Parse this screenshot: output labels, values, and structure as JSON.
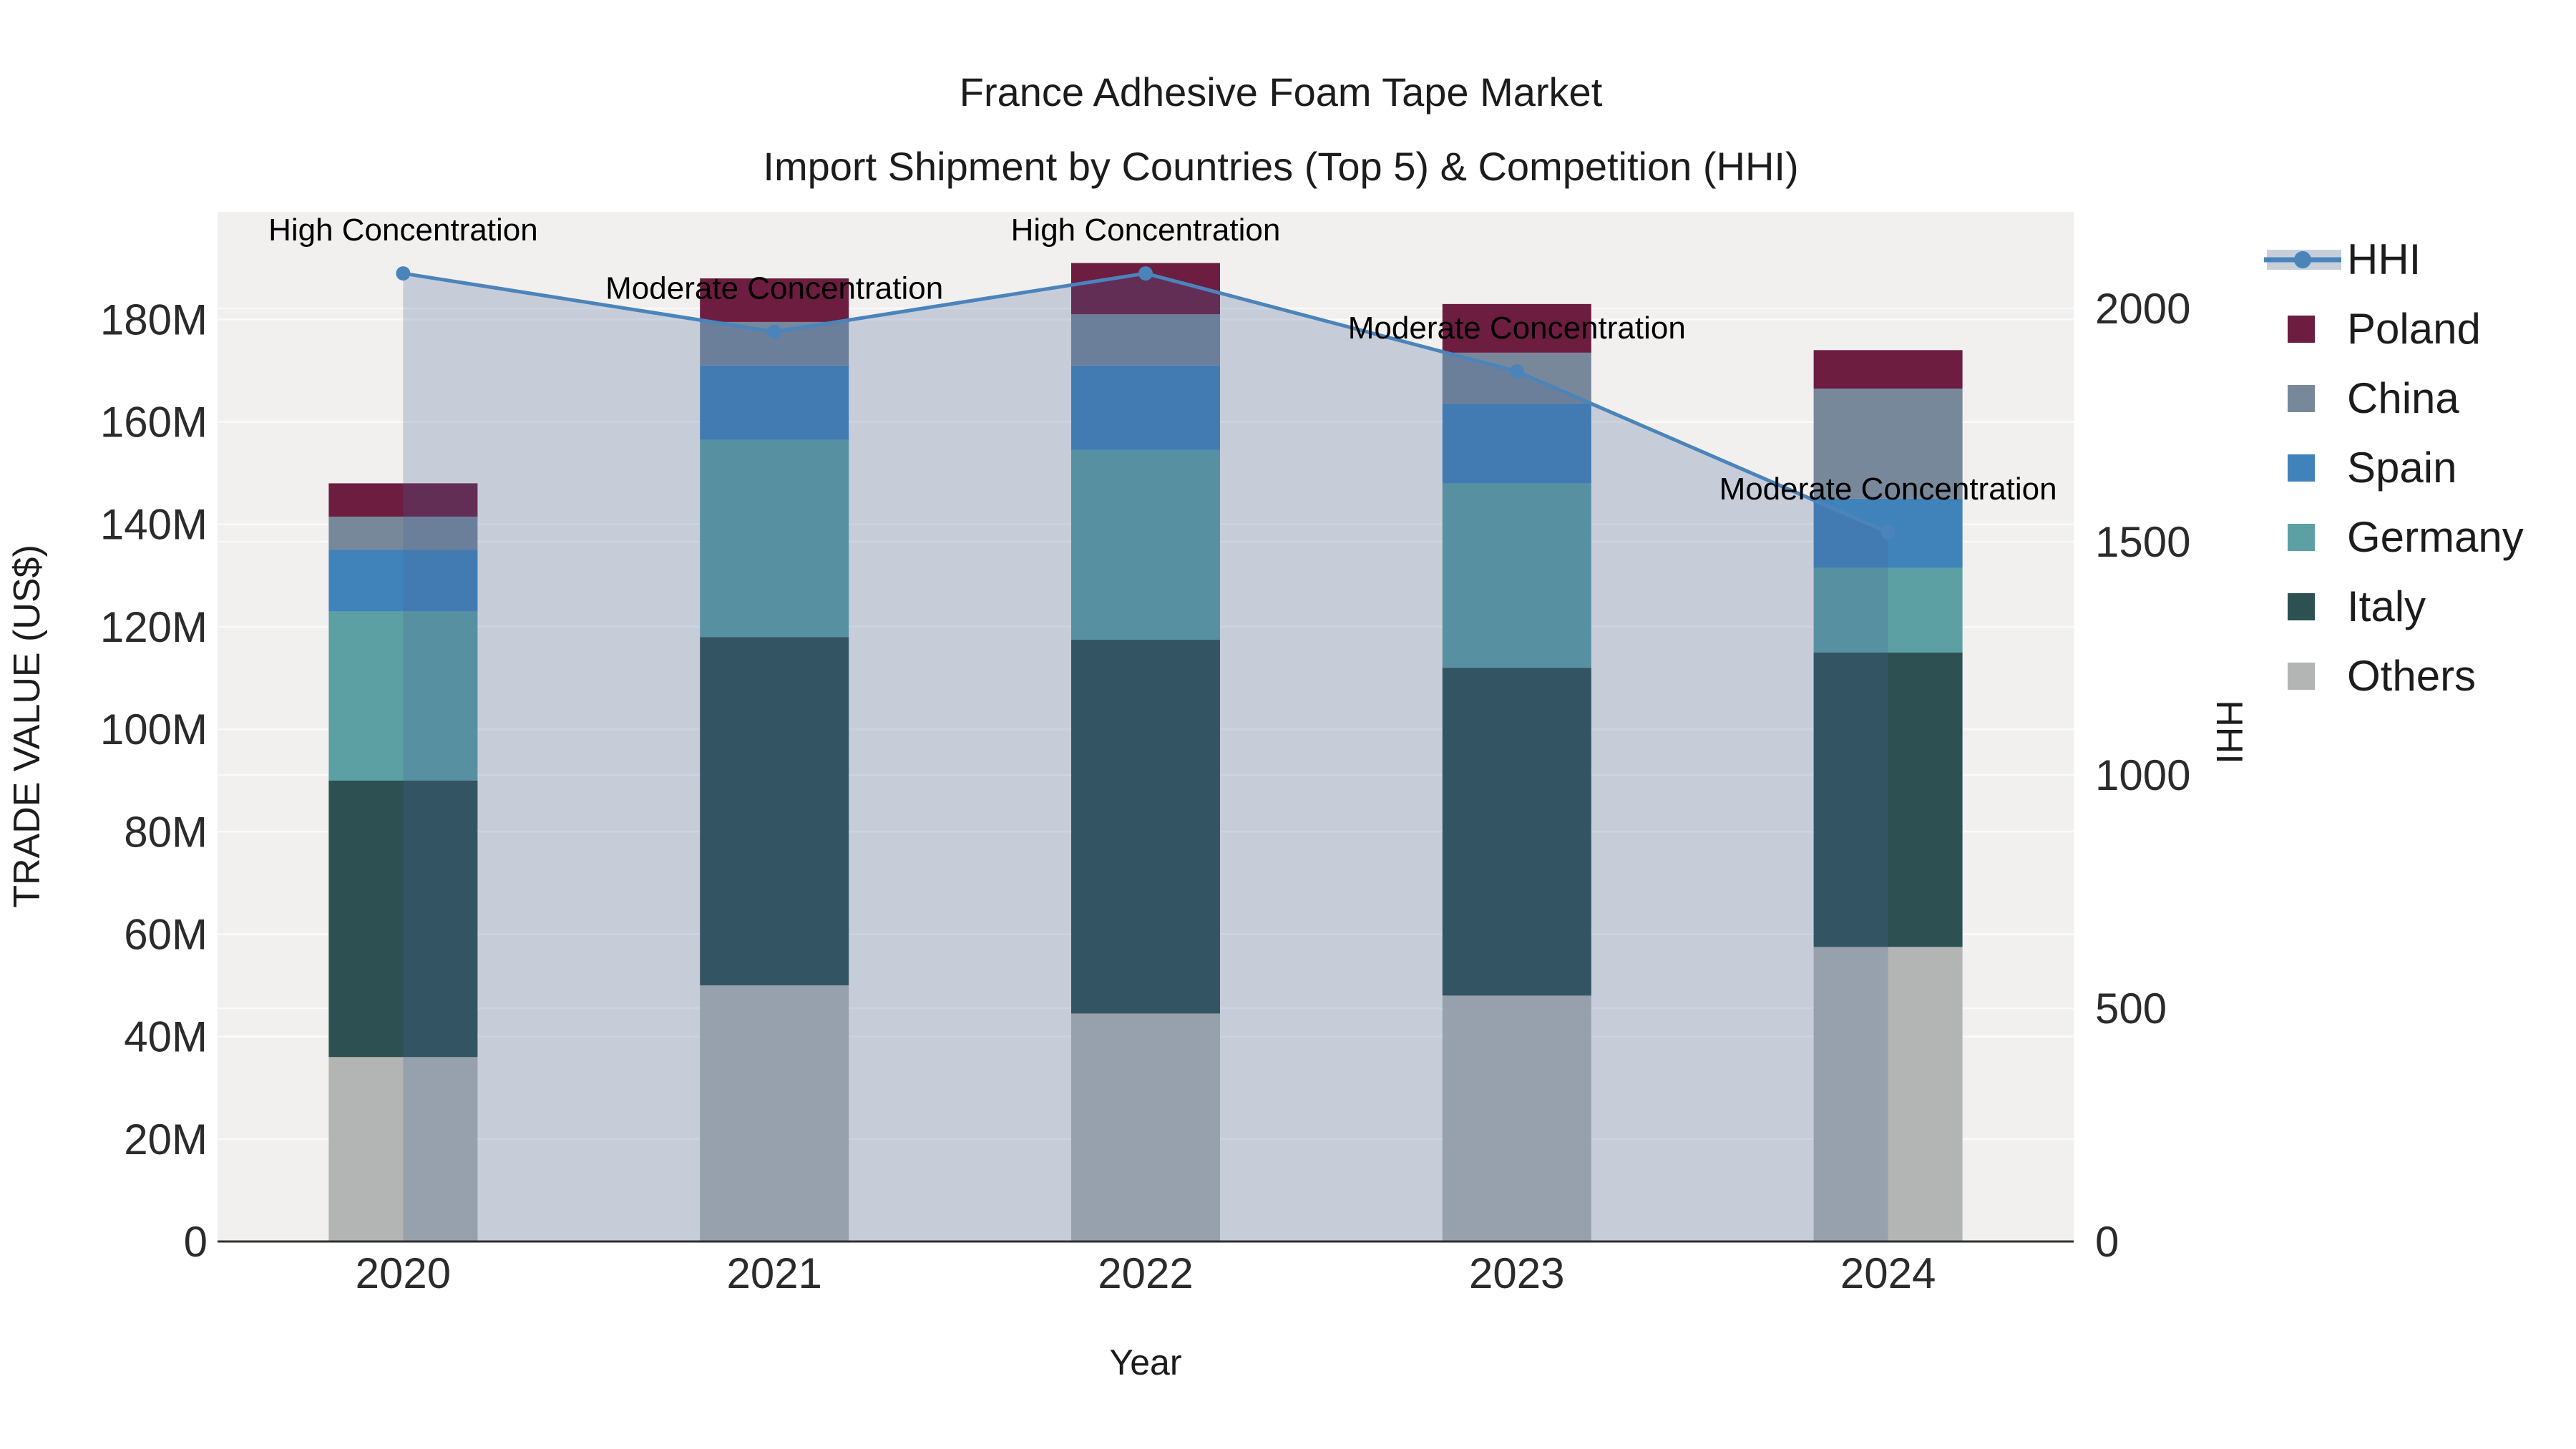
{
  "chart_data": {
    "type": "bar",
    "title": "France Adhesive Foam Tape Market",
    "subtitle": "Import Shipment by Countries (Top 5) & Competition (HHI)",
    "categories": [
      "2020",
      "2021",
      "2022",
      "2023",
      "2024"
    ],
    "stacked_bars": {
      "unit": "US$ millions",
      "stack_order_bottom_to_top": [
        "Others",
        "Italy",
        "Germany",
        "Spain",
        "China",
        "Poland"
      ],
      "series": [
        {
          "name": "Others",
          "color": "#b2b5b4",
          "values": [
            36,
            50,
            44.5,
            48,
            57.5
          ]
        },
        {
          "name": "Italy",
          "color": "#2d5052",
          "values": [
            54,
            68,
            73,
            64,
            57.5
          ]
        },
        {
          "name": "Germany",
          "color": "#5ca0a4",
          "values": [
            33,
            38.5,
            37,
            36,
            16.5
          ]
        },
        {
          "name": "Spain",
          "color": "#4083bb",
          "values": [
            12,
            14.5,
            16.5,
            15.5,
            13.5
          ]
        },
        {
          "name": "China",
          "color": "#78889b",
          "values": [
            6.5,
            8.5,
            10,
            10,
            21.5
          ]
        },
        {
          "name": "Poland",
          "color": "#6c1d40",
          "values": [
            6.5,
            8.5,
            10,
            9.5,
            7.5
          ]
        }
      ],
      "totals": [
        148,
        188,
        191,
        183,
        174
      ]
    },
    "hhi": {
      "name": "HHI",
      "line_color": "#4a84ba",
      "fill_color": "rgba(70,100,150,0.25)",
      "values": [
        2075,
        1950,
        2075,
        1865,
        1520
      ],
      "annotations": [
        "High Concentration",
        "Moderate Concentration",
        "High Concentration",
        "Moderate Concentration",
        "Moderate Concentration"
      ]
    },
    "yaxis_left": {
      "title": "TRADE VALUE (US$)",
      "tick_labels": [
        "0",
        "20M",
        "40M",
        "60M",
        "80M",
        "100M",
        "120M",
        "140M",
        "160M",
        "180M"
      ],
      "tick_values": [
        0,
        20,
        40,
        60,
        80,
        100,
        120,
        140,
        160,
        180
      ],
      "range": [
        0,
        201
      ]
    },
    "yaxis_right": {
      "title": "HHI",
      "tick_labels": [
        "0",
        "500",
        "1000",
        "1500",
        "2000"
      ],
      "tick_values": [
        0,
        500,
        1000,
        1500,
        2000
      ],
      "range": [
        0,
        2207
      ]
    },
    "xaxis": {
      "title": "Year"
    },
    "legend": {
      "position": "right",
      "items": [
        "HHI",
        "Poland",
        "China",
        "Spain",
        "Germany",
        "Italy",
        "Others"
      ]
    },
    "layout": {
      "plot_bg": "#f1f0ef",
      "grid_color": "#fafafa",
      "axis_line_color": "#2f2f2f"
    }
  }
}
